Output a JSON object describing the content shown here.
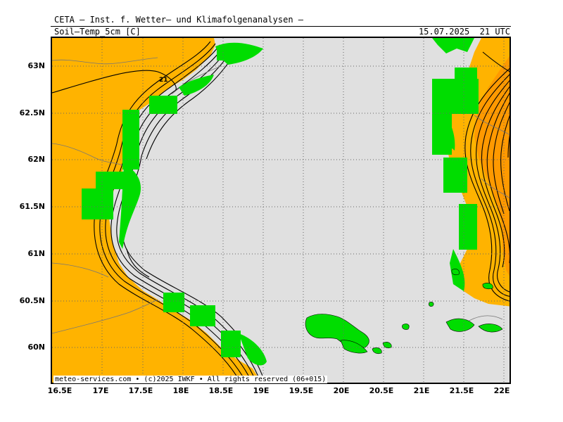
{
  "header": {
    "title": "CETA — Inst. f. Wetter— und Klimafolgenanalysen —",
    "parameter": "Soil—Temp_5cm [C]",
    "valid_time": "15.07.2025  21 UTC"
  },
  "map": {
    "region": "Gulf of Bothnia / Bothnian Sea",
    "lat_labels": [
      "63N",
      "62.5N",
      "62N",
      "61.5N",
      "61N",
      "60.5N",
      "60N"
    ],
    "lon_labels": [
      "16.5E",
      "17E",
      "17.5E",
      "18E",
      "18.5E",
      "19E",
      "19.5E",
      "20E",
      "20.5E",
      "21E",
      "21.5E",
      "22E"
    ],
    "contour_label": "21",
    "colors": {
      "sea": "#e0e0e0",
      "land_warm": "#ffb300",
      "land_hot": "#ff9900",
      "coast_cells": "#00dd00",
      "islands": "#00dd00",
      "contours": "#000000",
      "borders": "#777777"
    }
  },
  "footer": {
    "credit": "meteo-services.com • (c)2025 IWKF • All rights reserved (06+015)"
  }
}
